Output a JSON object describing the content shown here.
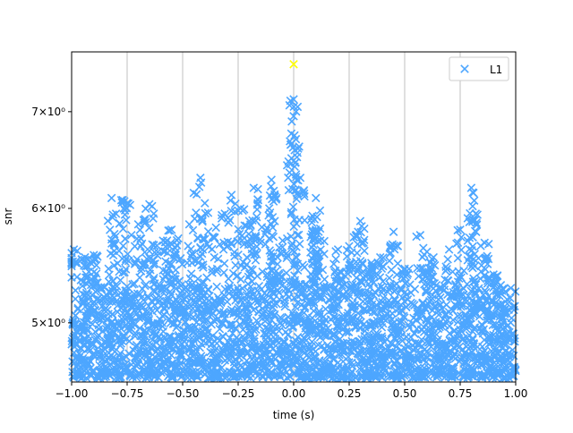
{
  "chart_data": {
    "type": "scatter",
    "title": "",
    "xlabel": "time (s)",
    "ylabel": "snr",
    "xlim": [
      -1.0,
      1.0
    ],
    "ylim": [
      4.55,
      7.7
    ],
    "y_scale": "log",
    "grid": {
      "x": true,
      "y": false
    },
    "legend_position": "top-right",
    "x_ticks": [
      -1.0,
      -0.75,
      -0.5,
      -0.25,
      0.0,
      0.25,
      0.5,
      0.75,
      1.0
    ],
    "x_tick_labels": [
      "−1.00",
      "−0.75",
      "−0.50",
      "−0.25",
      "0.00",
      "0.25",
      "0.50",
      "0.75",
      "1.00"
    ],
    "y_ticks": [
      5,
      6,
      7
    ],
    "y_tick_labels": [
      "5×10⁰",
      "6×10⁰",
      "7×10⁰"
    ],
    "series": [
      {
        "name": "L1",
        "marker": "x",
        "color": "#4da6ff",
        "description": "dense cloud of triggers between snr ~4.6 and ~5.3 across the full window, with outlying peaks",
        "peaks": [
          {
            "x": -0.99,
            "y": 5.62
          },
          {
            "x": -0.94,
            "y": 5.55
          },
          {
            "x": -0.9,
            "y": 5.57
          },
          {
            "x": -0.82,
            "y": 6.1
          },
          {
            "x": -0.8,
            "y": 5.95
          },
          {
            "x": -0.77,
            "y": 6.08
          },
          {
            "x": -0.75,
            "y": 6.05
          },
          {
            "x": -0.7,
            "y": 5.85
          },
          {
            "x": -0.67,
            "y": 5.9
          },
          {
            "x": -0.65,
            "y": 6.04
          },
          {
            "x": -0.63,
            "y": 5.95
          },
          {
            "x": -0.57,
            "y": 5.7
          },
          {
            "x": -0.55,
            "y": 5.8
          },
          {
            "x": -0.52,
            "y": 5.72
          },
          {
            "x": -0.47,
            "y": 5.85
          },
          {
            "x": -0.45,
            "y": 6.15
          },
          {
            "x": -0.42,
            "y": 6.3
          },
          {
            "x": -0.4,
            "y": 6.05
          },
          {
            "x": -0.35,
            "y": 5.82
          },
          {
            "x": -0.31,
            "y": 5.95
          },
          {
            "x": -0.28,
            "y": 6.13
          },
          {
            "x": -0.24,
            "y": 6.0
          },
          {
            "x": -0.2,
            "y": 5.88
          },
          {
            "x": -0.18,
            "y": 6.2
          },
          {
            "x": -0.16,
            "y": 6.08
          },
          {
            "x": -0.11,
            "y": 6.0
          },
          {
            "x": -0.1,
            "y": 6.28
          },
          {
            "x": -0.09,
            "y": 6.17
          },
          {
            "x": -0.05,
            "y": 5.7
          },
          {
            "x": -0.01,
            "y": 6.5
          },
          {
            "x": 0.0,
            "y": 7.14
          },
          {
            "x": 0.0,
            "y": 6.95
          },
          {
            "x": 0.01,
            "y": 6.7
          },
          {
            "x": 0.02,
            "y": 6.6
          },
          {
            "x": 0.03,
            "y": 6.3
          },
          {
            "x": 0.08,
            "y": 5.9
          },
          {
            "x": 0.1,
            "y": 6.1
          },
          {
            "x": 0.1,
            "y": 5.8
          },
          {
            "x": 0.12,
            "y": 5.7
          },
          {
            "x": 0.2,
            "y": 5.62
          },
          {
            "x": 0.25,
            "y": 5.65
          },
          {
            "x": 0.29,
            "y": 5.78
          },
          {
            "x": 0.3,
            "y": 5.88
          },
          {
            "x": 0.35,
            "y": 5.5
          },
          {
            "x": 0.39,
            "y": 5.55
          },
          {
            "x": 0.45,
            "y": 5.78
          },
          {
            "x": 0.5,
            "y": 5.45
          },
          {
            "x": 0.57,
            "y": 5.75
          },
          {
            "x": 0.6,
            "y": 5.6
          },
          {
            "x": 0.63,
            "y": 5.55
          },
          {
            "x": 0.7,
            "y": 5.62
          },
          {
            "x": 0.75,
            "y": 5.8
          },
          {
            "x": 0.8,
            "y": 6.2
          },
          {
            "x": 0.81,
            "y": 6.15
          },
          {
            "x": 0.82,
            "y": 5.95
          },
          {
            "x": 0.86,
            "y": 5.68
          },
          {
            "x": 0.9,
            "y": 5.4
          }
        ],
        "dense_band": [
          4.58,
          5.32
        ]
      },
      {
        "marker": "x",
        "color": "#ffff00",
        "points": [
          {
            "x": 0.0,
            "y": 7.55
          }
        ]
      }
    ]
  }
}
